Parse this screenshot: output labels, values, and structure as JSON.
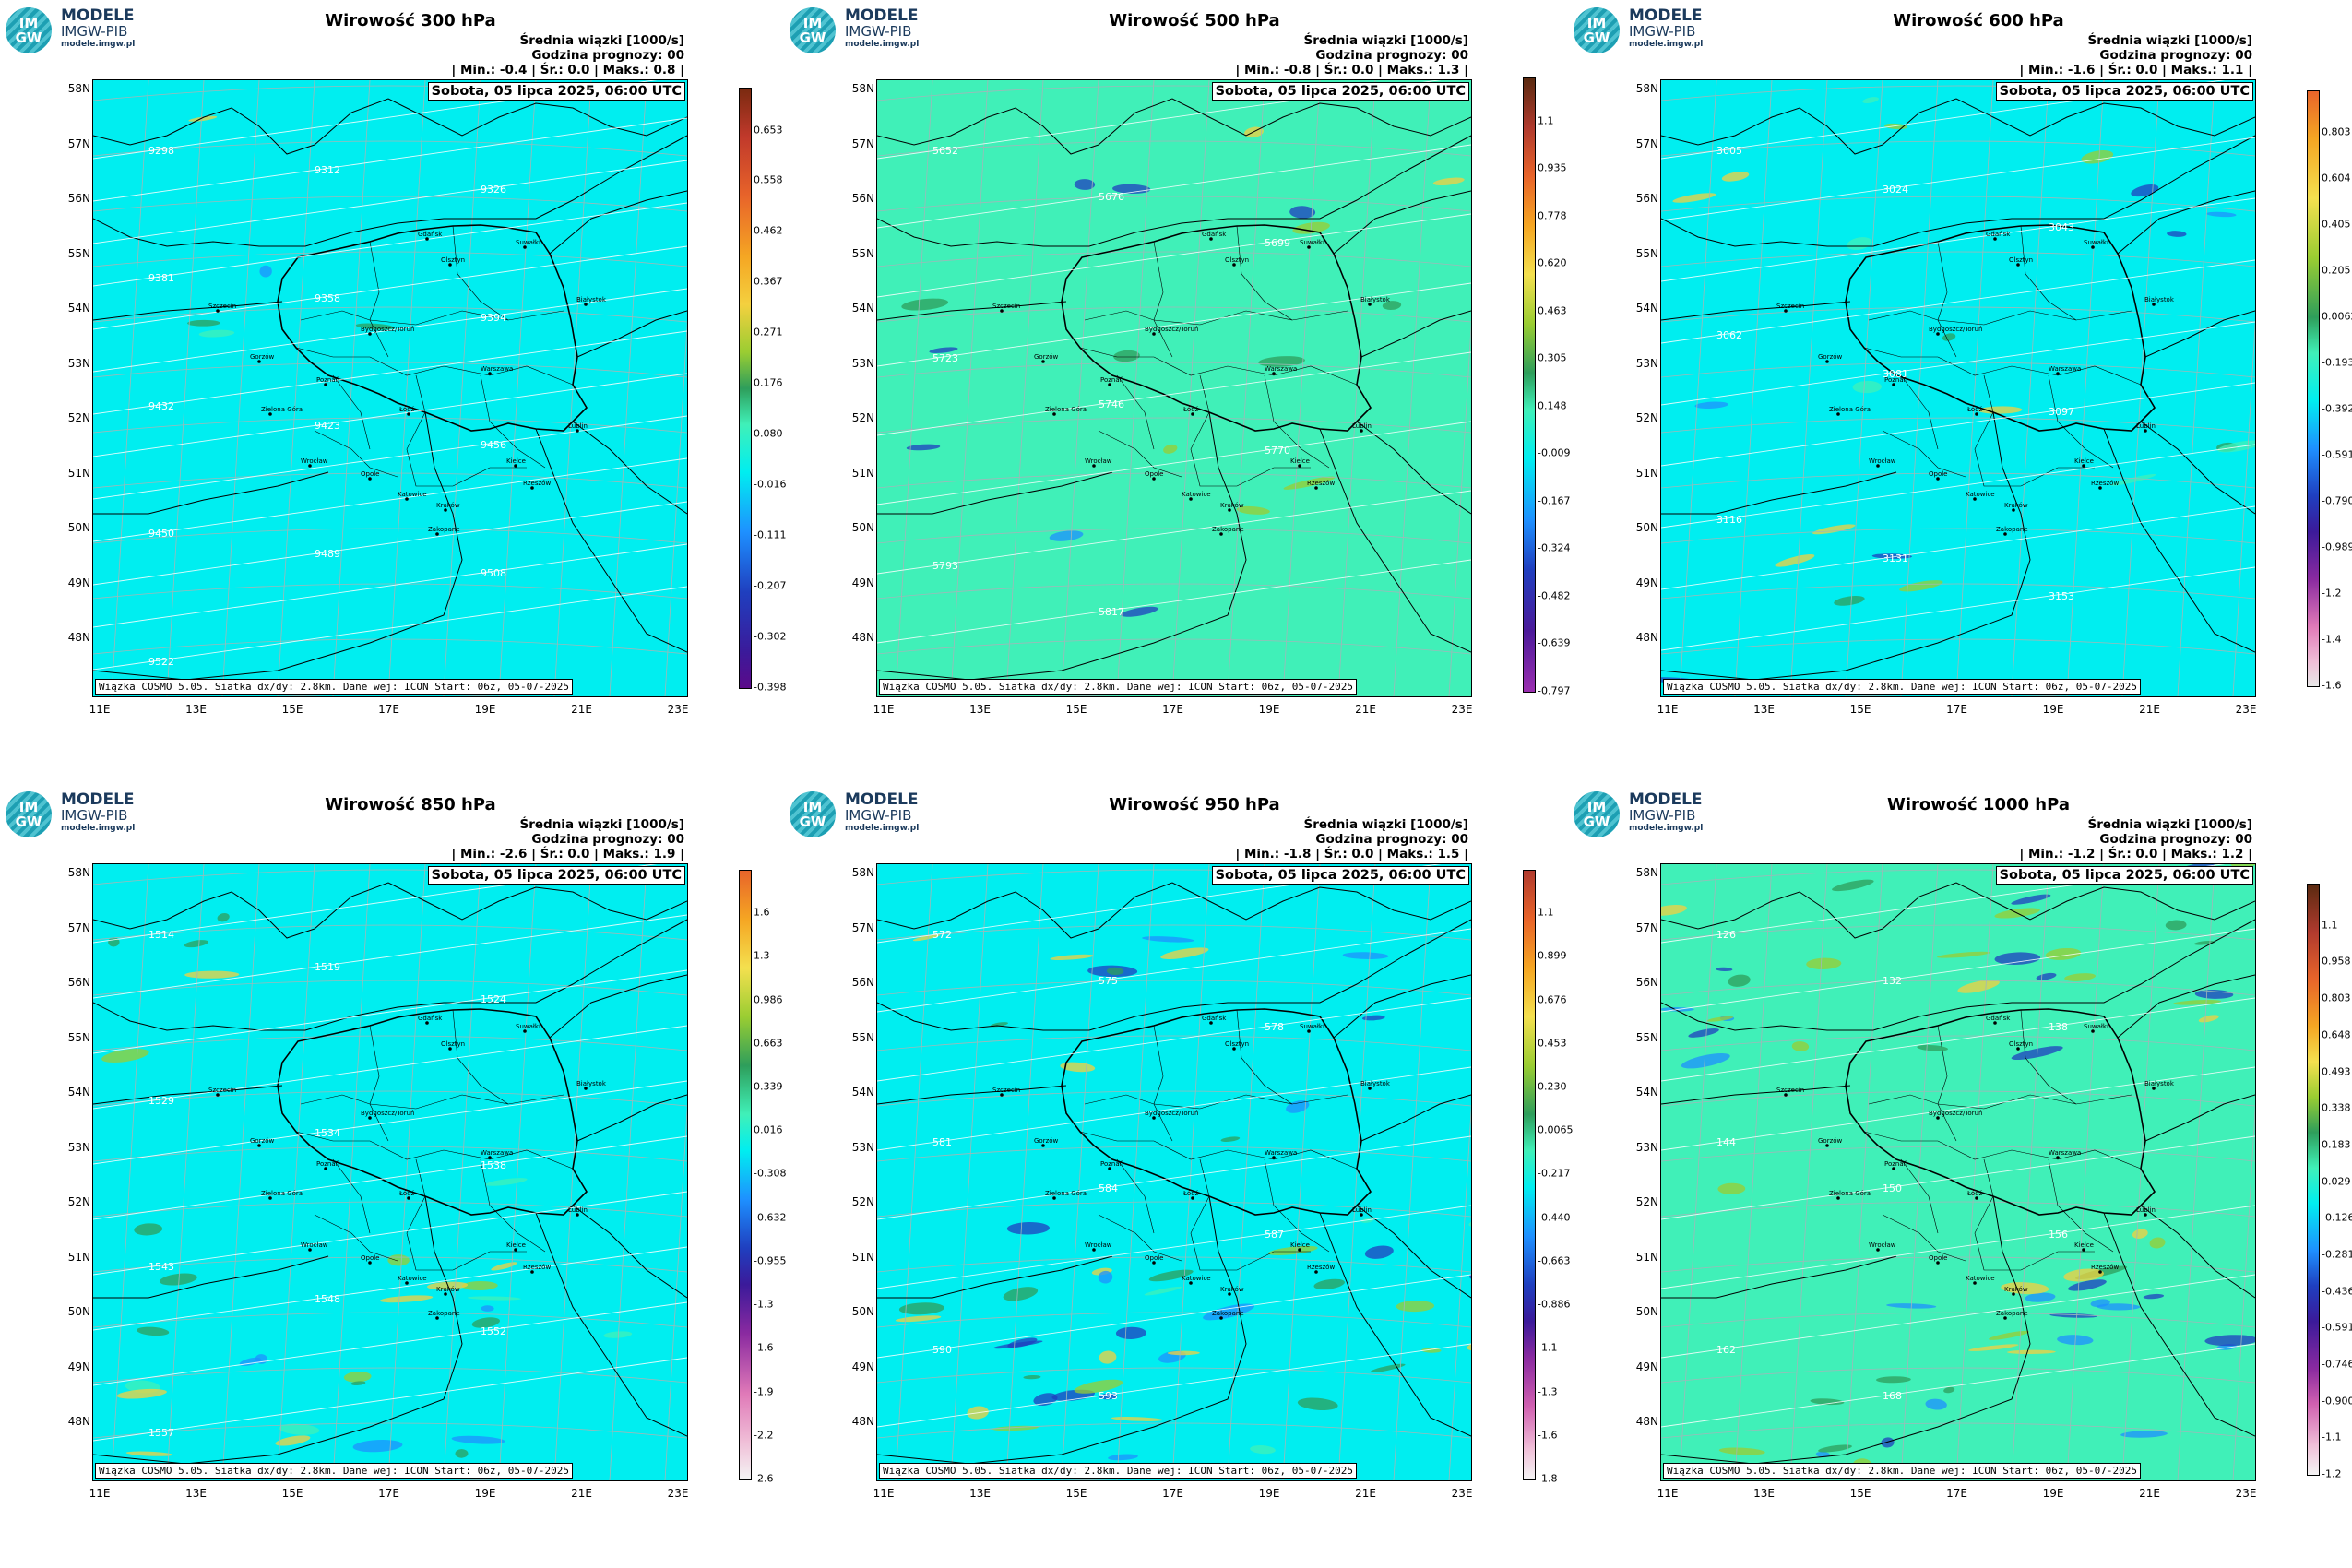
{
  "common": {
    "logo_brand": "MODELE",
    "logo_institute": "IMGW-PIB",
    "logo_url": "modele.imgw.pl",
    "logo_im": "IM",
    "logo_gw": "GW",
    "subtitle": "Średnia wiązki [1000/s]",
    "forecast_hour": "Godzina prognozy: 00",
    "date": "Sobota, 05 lipca 2025, 06:00 UTC",
    "footer": "Wiązka COSMO 5.05. Siatka dx/dy: 2.8km. Dane wej: ICON Start: 06z, 05-07-2025",
    "lat_labels": [
      "58N",
      "57N",
      "56N",
      "55N",
      "54N",
      "53N",
      "52N",
      "51N",
      "50N",
      "49N",
      "48N"
    ],
    "lon_labels": [
      "11E",
      "13E",
      "15E",
      "17E",
      "19E",
      "21E",
      "23E"
    ],
    "cities": [
      "Gdańsk",
      "Olsztyn",
      "Suwałki",
      "Białystok",
      "Szczecin",
      "Bydgoszcz/Toruń",
      "Gorzów",
      "Poznań",
      "Warszawa",
      "Zielona Góra",
      "Łódź",
      "Lublin",
      "Wrocław",
      "Kielce",
      "Opole",
      "Katowice",
      "Kraków",
      "Rzeszów",
      "Zakopane"
    ],
    "colors": {
      "background_cyan": "#00eef0",
      "background_green": "#40f0b8",
      "border": "#000000",
      "contour": "#ffffff"
    }
  },
  "panels": [
    {
      "title": "Wirowość 300 hPa",
      "stats": "| Min.:   -0.4 | Śr.:   0.0 | Maks.:   0.8 |",
      "bg": "cyan",
      "cbar_ticks": [
        "0.653",
        "0.558",
        "0.462",
        "0.367",
        "0.271",
        "0.176",
        "0.080",
        "-0.016",
        "-0.111",
        "-0.207",
        "-0.302",
        "-0.398"
      ],
      "contours": [
        "9298",
        "9312",
        "9326",
        "9381",
        "9358",
        "9394",
        "9432",
        "9423",
        "9456",
        "9450",
        "9489",
        "9508",
        "9522"
      ]
    },
    {
      "title": "Wirowość 500 hPa",
      "stats": "| Min.:   -0.8 | Śr.:   0.0 | Maks.:   1.3 |",
      "bg": "green",
      "cbar_ticks": [
        "1.1",
        "0.935",
        "0.778",
        "0.620",
        "0.463",
        "0.305",
        "0.148",
        "-0.009",
        "-0.167",
        "-0.324",
        "-0.482",
        "-0.639",
        "-0.797"
      ],
      "contours": [
        "5652",
        "5676",
        "5699",
        "5723",
        "5746",
        "5770",
        "5793",
        "5817"
      ]
    },
    {
      "title": "Wirowość 600 hPa",
      "stats": "| Min.:   -1.6 | Śr.:   0.0 | Maks.:   1.1 |",
      "bg": "cyan",
      "cbar_ticks": [
        "0.803",
        "0.604",
        "0.405",
        "0.205",
        "0.0062",
        "-0.193",
        "-0.392",
        "-0.591",
        "-0.790",
        "-0.989",
        "-1.2",
        "-1.4",
        "-1.6"
      ],
      "contours": [
        "3005",
        "3024",
        "3043",
        "3062",
        "3081",
        "3097",
        "3116",
        "3131",
        "3153"
      ]
    },
    {
      "title": "Wirowość 850 hPa",
      "stats": "| Min.:   -2.6 | Śr.:   0.0 | Maks.:   1.9 |",
      "bg": "cyan",
      "cbar_ticks": [
        "1.6",
        "1.3",
        "0.986",
        "0.663",
        "0.339",
        "0.016",
        "-0.308",
        "-0.632",
        "-0.955",
        "-1.3",
        "-1.6",
        "-1.9",
        "-2.2",
        "-2.6"
      ],
      "contours": [
        "1514",
        "1519",
        "1524",
        "1529",
        "1534",
        "1538",
        "1543",
        "1548",
        "1552",
        "1557"
      ]
    },
    {
      "title": "Wirowość 950 hPa",
      "stats": "| Min.:   -1.8 | Śr.:   0.0 | Maks.:   1.5 |",
      "bg": "cyan",
      "cbar_ticks": [
        "1.1",
        "0.899",
        "0.676",
        "0.453",
        "0.230",
        "0.0065",
        "-0.217",
        "-0.440",
        "-0.663",
        "-0.886",
        "-1.1",
        "-1.3",
        "-1.6",
        "-1.8"
      ],
      "contours": [
        "572",
        "575",
        "578",
        "581",
        "584",
        "587",
        "590",
        "593"
      ]
    },
    {
      "title": "Wirowość 1000 hPa",
      "stats": "| Min.:   -1.2 | Śr.:   0.0 | Maks.:   1.2 |",
      "bg": "green",
      "cbar_ticks": [
        "1.1",
        "0.958",
        "0.803",
        "0.648",
        "0.493",
        "0.338",
        "0.183",
        "0.029",
        "-0.126",
        "-0.281",
        "-0.436",
        "-0.591",
        "-0.746",
        "-0.900",
        "-1.1",
        "-1.2"
      ],
      "contours": [
        "126",
        "132",
        "138",
        "144",
        "150",
        "156",
        "162",
        "168"
      ]
    }
  ]
}
